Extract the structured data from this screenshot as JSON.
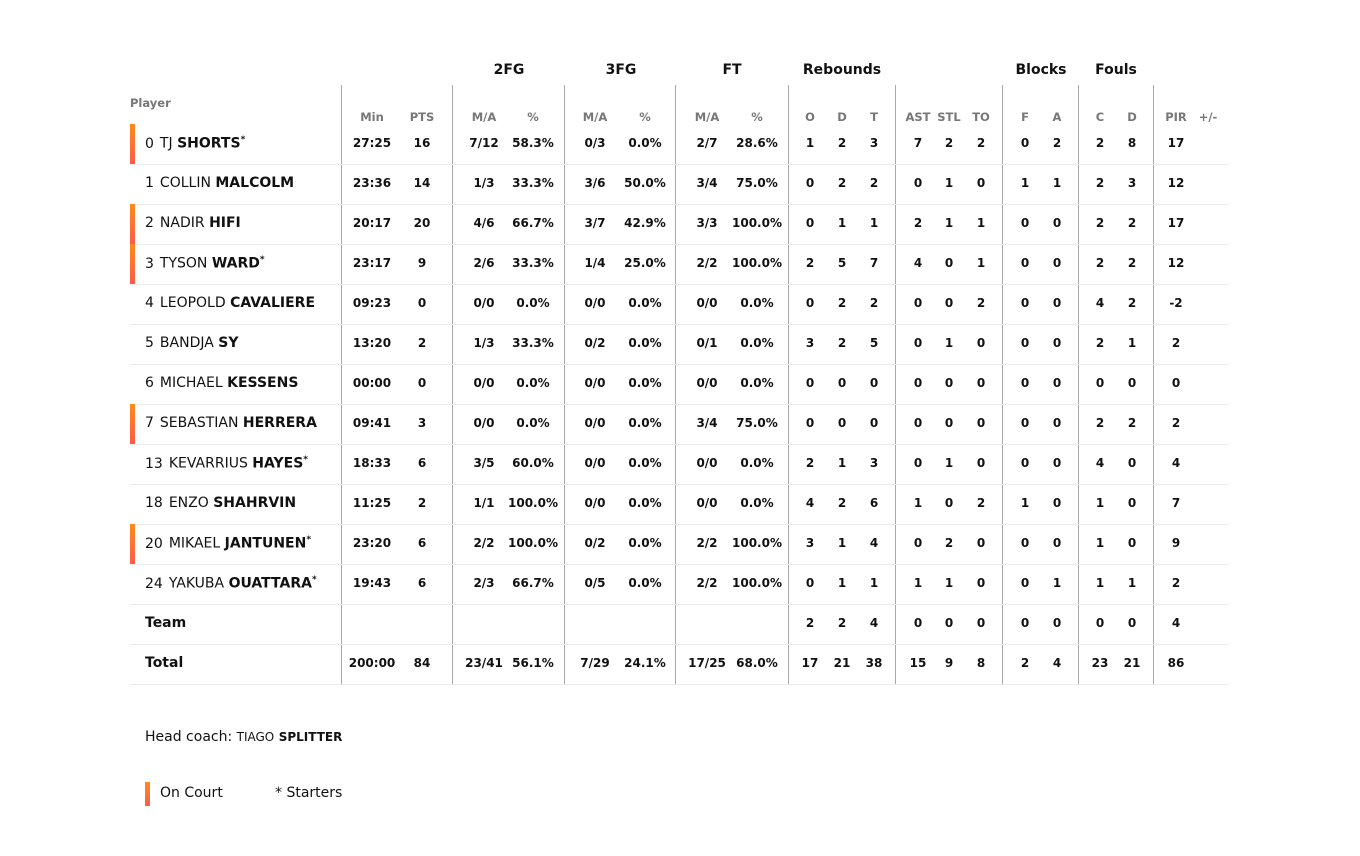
{
  "header": {
    "player_label": "Player",
    "groups": [
      "2FG",
      "3FG",
      "FT",
      "Rebounds",
      "Blocks",
      "Fouls"
    ],
    "subheaders": [
      "Min",
      "PTS",
      "M/A",
      "%",
      "M/A",
      "%",
      "M/A",
      "%",
      "O",
      "D",
      "T",
      "AST",
      "STL",
      "TO",
      "F",
      "A",
      "C",
      "D",
      "PIR",
      "+/-"
    ]
  },
  "on_court_color": "#ff6a3a",
  "players": [
    {
      "num": "0",
      "first": "TJ",
      "last": "SHORTS",
      "starter": true,
      "on_court": true,
      "stats": [
        "27:25",
        "16",
        "7/12",
        "58.3%",
        "0/3",
        "0.0%",
        "2/7",
        "28.6%",
        "1",
        "2",
        "3",
        "7",
        "2",
        "2",
        "0",
        "2",
        "2",
        "8",
        "17",
        ""
      ]
    },
    {
      "num": "1",
      "first": "COLLIN",
      "last": "MALCOLM",
      "starter": false,
      "on_court": false,
      "stats": [
        "23:36",
        "14",
        "1/3",
        "33.3%",
        "3/6",
        "50.0%",
        "3/4",
        "75.0%",
        "0",
        "2",
        "2",
        "0",
        "1",
        "0",
        "1",
        "1",
        "2",
        "3",
        "12",
        ""
      ]
    },
    {
      "num": "2",
      "first": "NADIR",
      "last": "HIFI",
      "starter": false,
      "on_court": true,
      "stats": [
        "20:17",
        "20",
        "4/6",
        "66.7%",
        "3/7",
        "42.9%",
        "3/3",
        "100.0%",
        "0",
        "1",
        "1",
        "2",
        "1",
        "1",
        "0",
        "0",
        "2",
        "2",
        "17",
        ""
      ]
    },
    {
      "num": "3",
      "first": "TYSON",
      "last": "WARD",
      "starter": true,
      "on_court": true,
      "stats": [
        "23:17",
        "9",
        "2/6",
        "33.3%",
        "1/4",
        "25.0%",
        "2/2",
        "100.0%",
        "2",
        "5",
        "7",
        "4",
        "0",
        "1",
        "0",
        "0",
        "2",
        "2",
        "12",
        ""
      ]
    },
    {
      "num": "4",
      "first": "LEOPOLD",
      "last": "CAVALIERE",
      "starter": false,
      "on_court": false,
      "stats": [
        "09:23",
        "0",
        "0/0",
        "0.0%",
        "0/0",
        "0.0%",
        "0/0",
        "0.0%",
        "0",
        "2",
        "2",
        "0",
        "0",
        "2",
        "0",
        "0",
        "4",
        "2",
        "-2",
        ""
      ]
    },
    {
      "num": "5",
      "first": "BANDJA",
      "last": "SY",
      "starter": false,
      "on_court": false,
      "stats": [
        "13:20",
        "2",
        "1/3",
        "33.3%",
        "0/2",
        "0.0%",
        "0/1",
        "0.0%",
        "3",
        "2",
        "5",
        "0",
        "1",
        "0",
        "0",
        "0",
        "2",
        "1",
        "2",
        ""
      ]
    },
    {
      "num": "6",
      "first": "MICHAEL",
      "last": "KESSENS",
      "starter": false,
      "on_court": false,
      "stats": [
        "00:00",
        "0",
        "0/0",
        "0.0%",
        "0/0",
        "0.0%",
        "0/0",
        "0.0%",
        "0",
        "0",
        "0",
        "0",
        "0",
        "0",
        "0",
        "0",
        "0",
        "0",
        "0",
        ""
      ]
    },
    {
      "num": "7",
      "first": "SEBASTIAN",
      "last": "HERRERA",
      "starter": false,
      "on_court": true,
      "stats": [
        "09:41",
        "3",
        "0/0",
        "0.0%",
        "0/0",
        "0.0%",
        "3/4",
        "75.0%",
        "0",
        "0",
        "0",
        "0",
        "0",
        "0",
        "0",
        "0",
        "2",
        "2",
        "2",
        ""
      ]
    },
    {
      "num": "13",
      "first": "KEVARRIUS",
      "last": "HAYES",
      "starter": true,
      "on_court": false,
      "stats": [
        "18:33",
        "6",
        "3/5",
        "60.0%",
        "0/0",
        "0.0%",
        "0/0",
        "0.0%",
        "2",
        "1",
        "3",
        "0",
        "1",
        "0",
        "0",
        "0",
        "4",
        "0",
        "4",
        ""
      ]
    },
    {
      "num": "18",
      "first": "ENZO",
      "last": "SHAHRVIN",
      "starter": false,
      "on_court": false,
      "stats": [
        "11:25",
        "2",
        "1/1",
        "100.0%",
        "0/0",
        "0.0%",
        "0/0",
        "0.0%",
        "4",
        "2",
        "6",
        "1",
        "0",
        "2",
        "1",
        "0",
        "1",
        "0",
        "7",
        ""
      ]
    },
    {
      "num": "20",
      "first": "MIKAEL",
      "last": "JANTUNEN",
      "starter": true,
      "on_court": true,
      "stats": [
        "23:20",
        "6",
        "2/2",
        "100.0%",
        "0/2",
        "0.0%",
        "2/2",
        "100.0%",
        "3",
        "1",
        "4",
        "0",
        "2",
        "0",
        "0",
        "0",
        "1",
        "0",
        "9",
        ""
      ]
    },
    {
      "num": "24",
      "first": "YAKUBA",
      "last": "OUATTARA",
      "starter": true,
      "on_court": false,
      "stats": [
        "19:43",
        "6",
        "2/3",
        "66.7%",
        "0/5",
        "0.0%",
        "2/2",
        "100.0%",
        "0",
        "1",
        "1",
        "1",
        "1",
        "0",
        "0",
        "1",
        "1",
        "1",
        "2",
        ""
      ]
    }
  ],
  "team": {
    "label": "Team",
    "stats": [
      "",
      "",
      "",
      "",
      "",
      "",
      "",
      "",
      "2",
      "2",
      "4",
      "0",
      "0",
      "0",
      "0",
      "0",
      "0",
      "0",
      "4",
      ""
    ]
  },
  "total": {
    "label": "Total",
    "stats": [
      "200:00",
      "84",
      "23/41",
      "56.1%",
      "7/29",
      "24.1%",
      "17/25",
      "68.0%",
      "17",
      "21",
      "38",
      "15",
      "9",
      "8",
      "2",
      "4",
      "23",
      "21",
      "86",
      ""
    ]
  },
  "footer": {
    "coach_label": "Head coach:",
    "coach_first": "TIAGO",
    "coach_last": "SPLITTER",
    "legend_on_court": "On Court",
    "legend_starters": "* Starters"
  }
}
